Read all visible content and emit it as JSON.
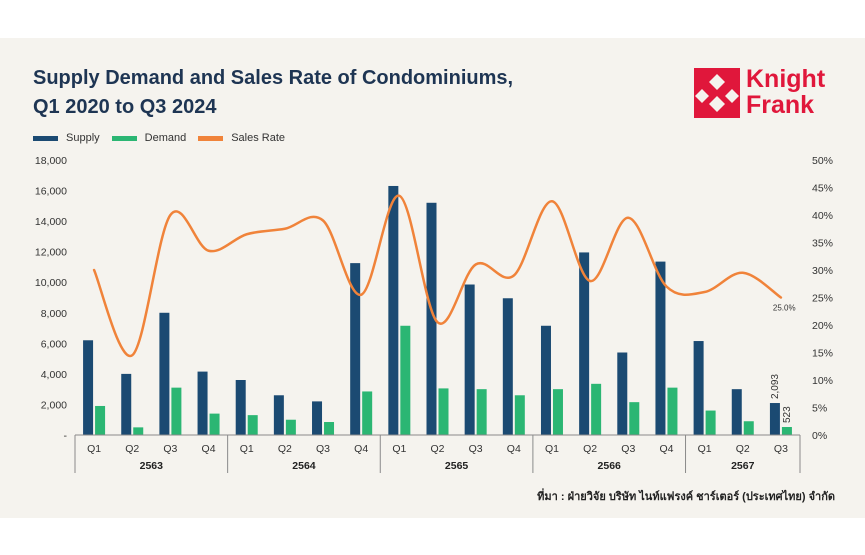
{
  "header": {
    "title_line1": "Supply Demand and Sales Rate of Condominiums,",
    "title_line2": "Q1 2020 to Q3 2024"
  },
  "logo": {
    "line1": "Knight",
    "line2": "Frank",
    "color": "#e0173b"
  },
  "source": "ที่มา : ฝ่ายวิจัย บริษัท ไนท์แฟรงค์ ชาร์เตอร์ (ประเทศไทย) จำกัด",
  "chart_data": {
    "type": "bar",
    "categories": [
      "Q1",
      "Q2",
      "Q3",
      "Q4",
      "Q1",
      "Q2",
      "Q3",
      "Q4",
      "Q1",
      "Q2",
      "Q3",
      "Q4",
      "Q1",
      "Q2",
      "Q3",
      "Q4",
      "Q1",
      "Q2",
      "Q3"
    ],
    "groups": [
      {
        "label": "2563",
        "quarters": 4
      },
      {
        "label": "2564",
        "quarters": 4
      },
      {
        "label": "2565",
        "quarters": 4
      },
      {
        "label": "2566",
        "quarters": 4
      },
      {
        "label": "2567",
        "quarters": 3
      }
    ],
    "series": [
      {
        "name": "Supply",
        "type": "bar",
        "axis": "left",
        "color": "#1b4a72",
        "values": [
          6200,
          4000,
          8000,
          4150,
          3600,
          2600,
          2200,
          11250,
          16300,
          15200,
          9850,
          8950,
          7150,
          11950,
          5400,
          11350,
          6150,
          3000,
          2093
        ]
      },
      {
        "name": "Demand",
        "type": "bar",
        "axis": "left",
        "color": "#2bb673",
        "values": [
          1900,
          500,
          3100,
          1400,
          1300,
          1000,
          850,
          2850,
          7150,
          3050,
          3000,
          2600,
          3000,
          3350,
          2150,
          3100,
          1600,
          900,
          523
        ]
      },
      {
        "name": "Sales Rate",
        "type": "line",
        "axis": "right",
        "color": "#f0833a",
        "values": [
          30.0,
          14.5,
          40.0,
          33.5,
          36.5,
          37.5,
          39.0,
          25.5,
          43.5,
          20.5,
          31.0,
          29.0,
          42.5,
          28.0,
          39.5,
          27.0,
          26.0,
          29.5,
          25.0
        ]
      }
    ],
    "data_labels": {
      "supply_last": "2,093",
      "demand_last": "523",
      "rate_last": "25.0%"
    },
    "y_left": {
      "min": 0,
      "max": 18000,
      "ticks": [
        "-",
        "2,000",
        "4,000",
        "6,000",
        "8,000",
        "10,000",
        "12,000",
        "14,000",
        "16,000",
        "18,000"
      ]
    },
    "y_right": {
      "min": 0,
      "max": 50,
      "ticks": [
        "0%",
        "5%",
        "10%",
        "15%",
        "20%",
        "25%",
        "30%",
        "35%",
        "40%",
        "45%",
        "50%"
      ]
    },
    "grid": false,
    "legend": "top-left"
  }
}
